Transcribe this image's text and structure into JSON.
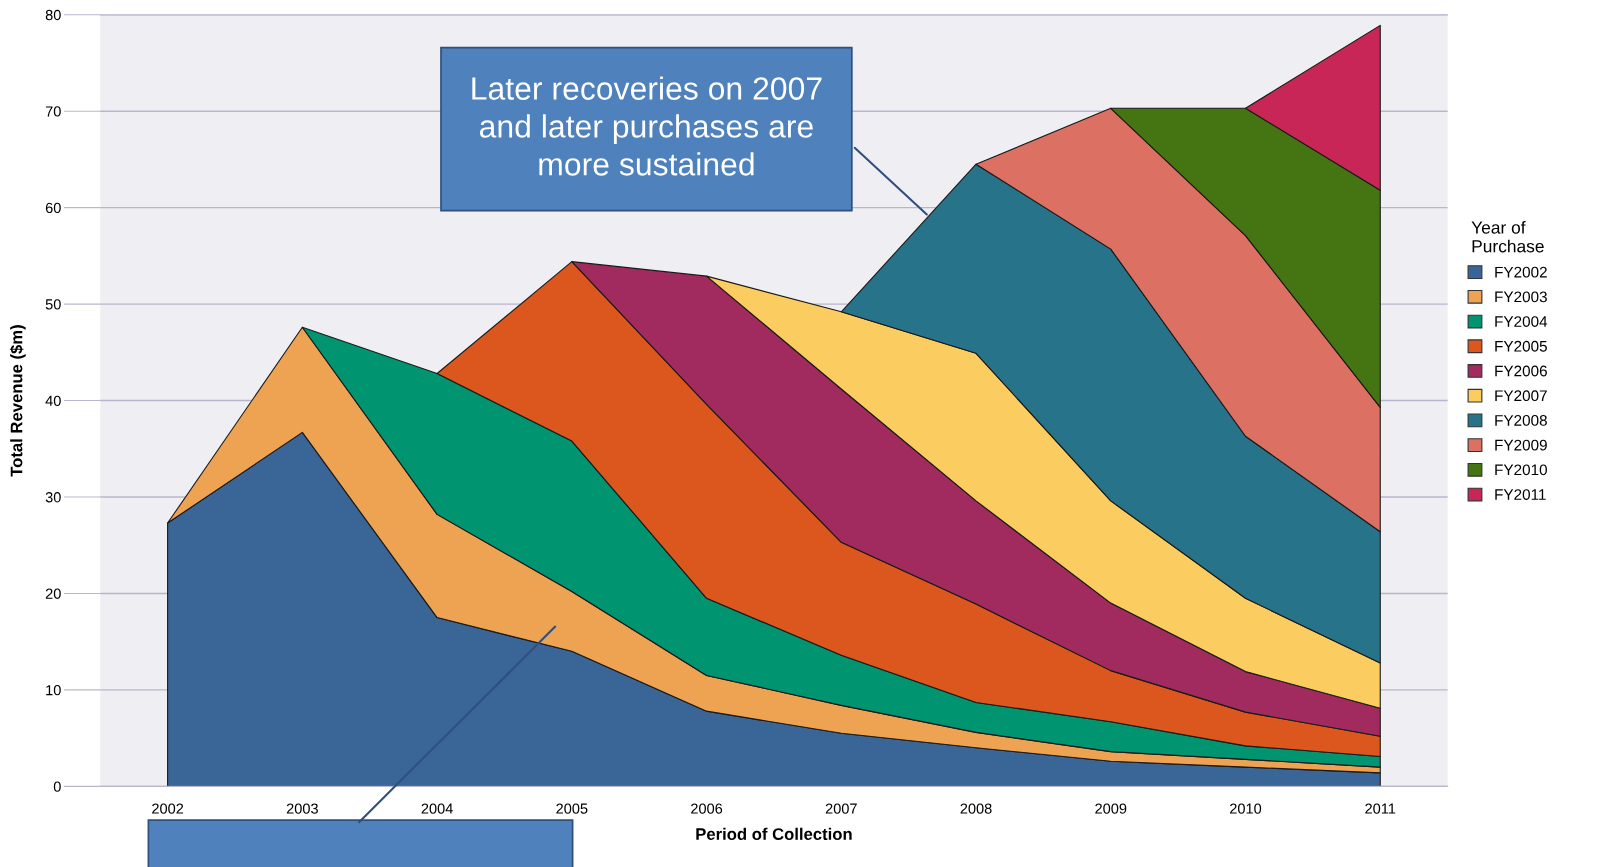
{
  "chart_data": {
    "type": "area",
    "stacked": true,
    "xlabel": "Period of Collection",
    "ylabel": "Total Revenue ($m)",
    "legend_title": "Year of\nPurchase",
    "x": [
      2002,
      2003,
      2004,
      2005,
      2006,
      2007,
      2008,
      2009,
      2010,
      2011
    ],
    "xlim": [
      2001.5,
      2011.5
    ],
    "xticks": [
      2002,
      2003,
      2004,
      2005,
      2006,
      2007,
      2008,
      2009,
      2010,
      2011
    ],
    "ylim": [
      0,
      80
    ],
    "yticks": [
      0,
      10,
      20,
      30,
      40,
      50,
      60,
      70,
      80
    ],
    "grid": "y",
    "legend": "right",
    "series": [
      {
        "name": "FY2002",
        "color": "#3a6697",
        "values": [
          27.3,
          36.7,
          17.5,
          14.0,
          7.8,
          5.5,
          4.0,
          2.6,
          2.0,
          1.4
        ]
      },
      {
        "name": "FY2003",
        "color": "#eea353",
        "values": [
          0,
          10.9,
          10.7,
          6.2,
          3.7,
          2.9,
          1.6,
          1.0,
          0.8,
          0.6
        ]
      },
      {
        "name": "FY2004",
        "color": "#009470",
        "values": [
          null,
          0,
          14.6,
          15.6,
          8.0,
          5.2,
          3.1,
          3.1,
          1.4,
          1.1
        ]
      },
      {
        "name": "FY2005",
        "color": "#dc571e",
        "values": [
          null,
          null,
          0,
          18.6,
          20.1,
          11.7,
          10.2,
          5.3,
          3.5,
          2.1
        ]
      },
      {
        "name": "FY2006",
        "color": "#a12b5e",
        "values": [
          null,
          null,
          null,
          0,
          13.3,
          15.9,
          10.7,
          7.0,
          4.2,
          2.9
        ]
      },
      {
        "name": "FY2007",
        "color": "#fbcd60",
        "values": [
          null,
          null,
          null,
          null,
          0,
          8.0,
          15.3,
          10.6,
          7.6,
          4.7
        ]
      },
      {
        "name": "FY2008",
        "color": "#27748a",
        "values": [
          null,
          null,
          null,
          null,
          null,
          0,
          19.6,
          26.1,
          16.8,
          13.6
        ]
      },
      {
        "name": "FY2009",
        "color": "#db7063",
        "values": [
          null,
          null,
          null,
          null,
          null,
          null,
          0,
          14.6,
          20.8,
          12.9
        ]
      },
      {
        "name": "FY2010",
        "color": "#457513",
        "values": [
          null,
          null,
          null,
          null,
          null,
          null,
          null,
          0,
          13.2,
          22.5
        ]
      },
      {
        "name": "FY2011",
        "color": "#c72657",
        "values": [
          null,
          null,
          null,
          null,
          null,
          null,
          null,
          null,
          0,
          17.1
        ]
      }
    ],
    "annotations": [
      {
        "text": "Later recoveries on 2007\nand later purchases are\nmore sustained",
        "x": 2007.65,
        "y": 59.1
      }
    ]
  }
}
